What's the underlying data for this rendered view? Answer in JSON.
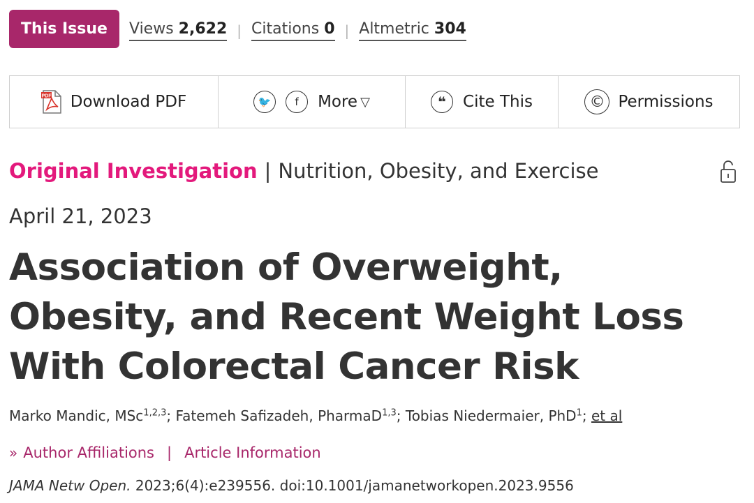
{
  "issue_button": {
    "label": "This Issue"
  },
  "metrics": [
    {
      "label": "Views",
      "value": "2,622"
    },
    {
      "label": "Citations",
      "value": "0"
    },
    {
      "label": "Altmetric",
      "value": "304"
    }
  ],
  "metric_separator": "|",
  "toolbar": {
    "download_pdf": "Download PDF",
    "pdf_icon_text": "PDF",
    "twitter_icon": "twitter-icon",
    "facebook_icon": "facebook-icon",
    "twitter_glyph": "🐦",
    "facebook_glyph": "f",
    "more": "More",
    "more_caret": "▽",
    "cite_glyph": "❝",
    "cite": "Cite This",
    "permissions_glyph": "©",
    "permissions": "Permissions"
  },
  "article": {
    "type": "Original Investigation",
    "separator": "|",
    "topic": "Nutrition, Obesity, and Exercise",
    "date": "April 21, 2023",
    "title": "Association of Overweight, Obesity, and Recent Weight Loss With Colorectal Cancer Risk",
    "authors": [
      {
        "name": "Marko Mandic, MSc",
        "sup": "1,2,3",
        "after": "; "
      },
      {
        "name": "Fatemeh Safizadeh, PharmaD",
        "sup": "1,3",
        "after": "; "
      },
      {
        "name": "Tobias Niedermaier, PhD",
        "sup": "1",
        "after": "; "
      }
    ],
    "et_al": "et al",
    "author_affiliations": "Author Affiliations",
    "aff_chevron": "»",
    "aff_separator": "|",
    "article_information": "Article Information",
    "citation_journal": "JAMA Netw Open.",
    "citation_rest": " 2023;6(4):e239556. doi:10.1001/jamanetworkopen.2023.9556"
  },
  "colors": {
    "brand_purple": "#a8276a",
    "accent_pink": "#e3197c",
    "text": "#333333"
  }
}
